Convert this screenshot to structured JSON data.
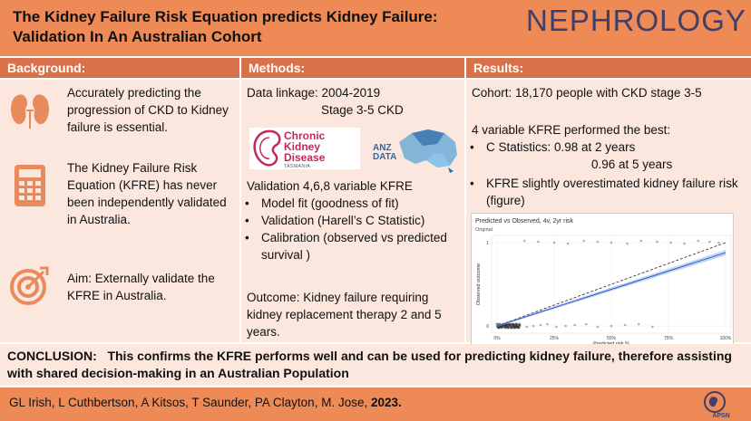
{
  "header": {
    "title_line1": "The Kidney Failure Risk Equation predicts Kidney Failure:",
    "title_line2": "Validation In An Australian Cohort",
    "brand": "NEPHROLOGY"
  },
  "columns": {
    "background": "Background:",
    "methods": "Methods:",
    "results": "Results:"
  },
  "background": {
    "p1": "Accurately predicting the progression of CKD to Kidney failure is essential.",
    "p2": "The Kidney Failure Risk Equation (KFRE) has never been independently validated in Australia.",
    "p3": "Aim: Externally validate the KFRE in Australia."
  },
  "methods": {
    "linkage": "Data linkage: 2004-2019",
    "stage": "Stage 3-5 CKD",
    "logo_ckd": [
      "Chronic",
      "Kidney",
      "Disease"
    ],
    "logo_ckd_sub": "TASMANIA",
    "logo_anz": [
      "ANZ",
      "DATA"
    ],
    "validation": "Validation 4,6,8 variable KFRE",
    "bullets": [
      "Model fit (goodness of fit)",
      "Validation (Harell’s C Statistic)",
      "Calibration (observed vs predicted survival )"
    ],
    "outcome": "Outcome: Kidney failure requiring kidney replacement therapy 2 and 5 years."
  },
  "results": {
    "cohort": "Cohort: 18,170 people with CKD stage 3-5",
    "best": "4 variable KFRE performed the best:",
    "c_stat_1": "C Statistics: 0.98 at 2 years",
    "c_stat_2": "0.96 at 5 years",
    "overestimate": "KFRE slightly overestimated kidney failure risk (figure)"
  },
  "chart_data": {
    "type": "scatter",
    "title": "Predicted vs Observed, 4v, 2yr risk",
    "subtitle": "Original",
    "xlabel": "Predicted risk %",
    "ylabel": "Observed outcome",
    "x_ticks": [
      "0%",
      "25%",
      "50%",
      "75%",
      "100%"
    ],
    "y_ticks": [
      "0",
      "1"
    ],
    "xlim": [
      0,
      100
    ],
    "ylim": [
      0,
      1
    ],
    "reference_line": {
      "x": [
        0,
        100
      ],
      "y": [
        0,
        1
      ]
    },
    "fit_line": {
      "x": [
        0,
        100
      ],
      "y": [
        0,
        0.88
      ]
    },
    "points_outcome_1": [
      12,
      18,
      25,
      31,
      38,
      44,
      50,
      57,
      63,
      70,
      76,
      82,
      88,
      93,
      97
    ],
    "points_outcome_0": [
      1,
      3,
      5,
      8,
      10,
      13,
      16,
      19,
      22,
      26,
      30,
      34,
      39,
      44,
      50,
      56,
      62,
      68
    ]
  },
  "conclusion": {
    "label": "CONCLUSION:",
    "text": "This confirms the KFRE performs well and can be used for predicting kidney failure, therefore assisting with shared decision-making in an Australian Population"
  },
  "footer": {
    "authors": "GL Irish,  L Cuthbertson, A Kitsos, T Saunder, PA Clayton, M. Jose, ",
    "year": "2023.",
    "logo": "APSN"
  },
  "colors": {
    "header": "#ee8a56",
    "column_header": "#d9724a",
    "panel": "#fbe7dd",
    "brand": "#3f3f6b"
  }
}
